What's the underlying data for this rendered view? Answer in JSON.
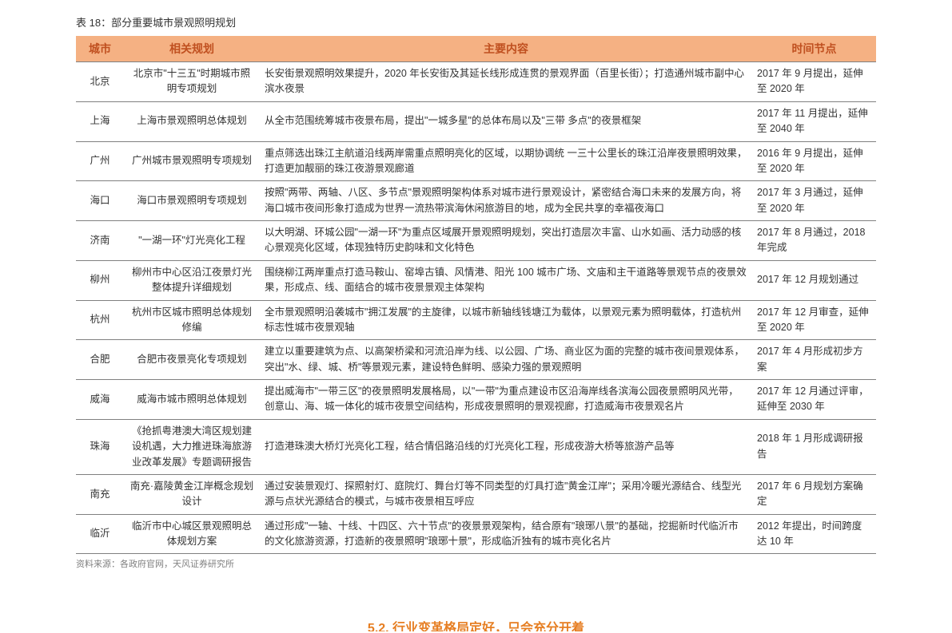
{
  "title": "表 18：部分重要城市景观照明规划",
  "columns": [
    "城市",
    "相关规划",
    "主要内容",
    "时间节点"
  ],
  "rows": [
    {
      "city": "北京",
      "plan": "北京市\"十三五\"时期城市照明专项规划",
      "content": "长安街景观照明效果提升，2020 年长安街及其延长线形成连贯的景观界面（百里长街）；打造通州城市副中心滨水夜景",
      "time": "2017 年 9 月提出，延伸至 2020 年"
    },
    {
      "city": "上海",
      "plan": "上海市景观照明总体规划",
      "content": "从全市范围统筹城市夜景布局，提出\"一城多星\"的总体布局以及\"三带 多点\"的夜景框架",
      "time": "2017 年 11 月提出，延伸至 2040 年"
    },
    {
      "city": "广州",
      "plan": "广州城市景观照明专项规划",
      "content": "重点筛选出珠江主航道沿线两岸需重点照明亮化的区域，以期协调统 一三十公里长的珠江沿岸夜景照明效果，打造更加靓丽的珠江夜游景观廊道",
      "time": "2016 年 9 月提出，延伸至 2020 年"
    },
    {
      "city": "海口",
      "plan": "海口市景观照明专项规划",
      "content": "按照\"两带、两轴、八区、多节点\"景观照明架构体系对城市进行景观设计，紧密结合海口未来的发展方向，将海口城市夜间形象打造成为世界一流热带滨海休闲旅游目的地，成为全民共享的幸福夜海口",
      "time": "2017 年 3 月通过，延伸至 2020 年"
    },
    {
      "city": "济南",
      "plan": "\"一湖一环\"灯光亮化工程",
      "content": "以大明湖、环城公园\"一湖一环\"为重点区域展开景观照明规划，突出打造层次丰富、山水如画、活力动感的核心景观亮化区域，体现独特历史韵味和文化特色",
      "time": "2017 年 8 月通过，2018 年完成"
    },
    {
      "city": "柳州",
      "plan": "柳州市中心区沿江夜景灯光整体提升详细规划",
      "content": "围绕柳江两岸重点打造马鞍山、窑埠古镇、风情港、阳光 100 城市广场、文庙和主干道路等景观节点的夜景效果，形成点、线、面结合的城市夜景景观主体架构",
      "time": "2017 年 12 月规划通过"
    },
    {
      "city": "杭州",
      "plan": "杭州市区城市照明总体规划修编",
      "content": "全市景观照明沿袭城市\"拥江发展\"的主旋律，以城市新轴线钱塘江为载体，以景观元素为照明载体，打造杭州标志性城市夜景观轴",
      "time": "2017 年 12 月审查，延伸至 2020 年"
    },
    {
      "city": "合肥",
      "plan": "合肥市夜景亮化专项规划",
      "content": "建立以重要建筑为点、以高架桥梁和河流沿岸为线、以公园、广场、商业区为面的完整的城市夜间景观体系，突出\"水、绿、城、桥\"等景观元素，建设特色鲜明、感染力强的景观照明",
      "time": "2017 年 4 月形成初步方案"
    },
    {
      "city": "威海",
      "plan": "威海市城市照明总体规划",
      "content": "提出威海市\"一带三区\"的夜景照明发展格局，以\"一带\"为重点建设市区沿海岸线各滨海公园夜景照明风光带，创意山、海、城一体化的城市夜景空间结构，形成夜景照明的景观视廊，打造威海市夜景观名片",
      "time": "2017 年 12 月通过评审，延伸至 2030 年"
    },
    {
      "city": "珠海",
      "plan": "《抢抓粤港澳大湾区规划建设机遇，大力推进珠海旅游业改革发展》专题调研报告",
      "content": "打造港珠澳大桥灯光亮化工程，结合情侣路沿线的灯光亮化工程，形成夜游大桥等旅游产品等",
      "time": "2018 年 1 月形成调研报告"
    },
    {
      "city": "南充",
      "plan": "南充·嘉陵黄金江岸概念规划设计",
      "content": "通过安装景观灯、探照射灯、庭院灯、舞台灯等不同类型的灯具打造\"黄金江岸\"；采用冷暖光源结合、线型光源与点状光源结合的模式，与城市夜景相互呼应",
      "time": "2017 年 6 月规划方案确定"
    },
    {
      "city": "临沂",
      "plan": "临沂市中心城区景观照明总体规划方案",
      "content": "通过形成\"一轴、十线、十四区、六十节点\"的夜景景观架构，结合原有\"琅琊八景\"的基础，挖掘新时代临沂市的文化旅游资源，打造新的夜景照明\"琅琊十景\"，形成临沂独有的城市亮化名片",
      "time": "2012 年提出，时间跨度达 10 年"
    }
  ],
  "source": "资料来源：各政府官网，天风证券研究所",
  "bottom_fragment": "5.2. 行业变革格局定好，只会充分开着"
}
